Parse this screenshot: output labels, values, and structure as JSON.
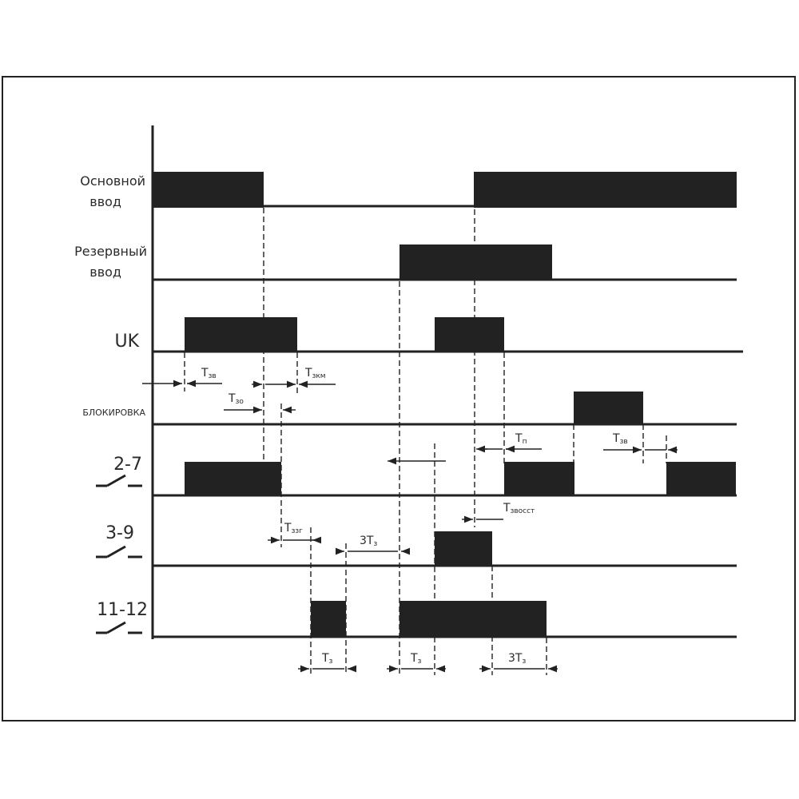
{
  "signals": {
    "osnovnoy": {
      "line1": "Основной",
      "line2": "ввод"
    },
    "rezervny": {
      "line1": "Резервный",
      "line2": "ввод"
    },
    "uk": {
      "label": "UK"
    },
    "blokirovka": {
      "label": "БЛОКИРОВКА"
    },
    "c27": {
      "label": "2-7"
    },
    "c39": {
      "label": "3-9"
    },
    "c1112": {
      "label": "11-12"
    }
  },
  "annotations": {
    "tzv1": {
      "main": "Т",
      "sub": "зв"
    },
    "tzkm": {
      "main": "Т",
      "sub": "зкм"
    },
    "tzo": {
      "main": "Т",
      "sub": "зо"
    },
    "tp": {
      "main": "Т",
      "sub": "п"
    },
    "tzv2": {
      "main": "Т",
      "sub": "зв"
    },
    "tzvosst": {
      "main": "Т",
      "sub": "звосст"
    },
    "tzzg": {
      "main": "Т",
      "sub": "ззг"
    },
    "t3tz1": {
      "main": "3Т",
      "sub": "з"
    },
    "tz1": {
      "main": "Т",
      "sub": "з"
    },
    "tz2": {
      "main": "Т",
      "sub": "з"
    },
    "t3tz2": {
      "main": "3Т",
      "sub": "з"
    }
  },
  "colors": {
    "ink": "#222222",
    "text": "#2a2a2a"
  }
}
